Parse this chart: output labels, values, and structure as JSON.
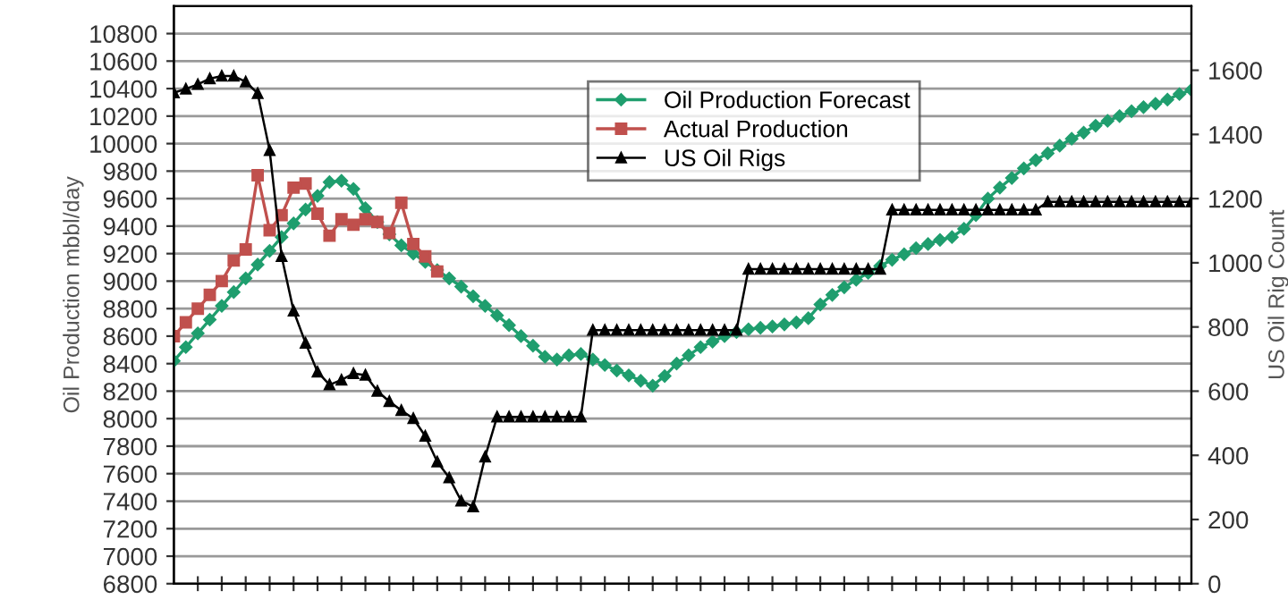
{
  "chart_data": {
    "type": "line",
    "ylabel": "Oil Production mbbl/day",
    "y2label": "US Oil Rig Count",
    "categories": [
      null,
      null,
      null,
      null,
      null,
      null,
      null,
      null,
      null,
      null,
      null,
      null,
      null,
      null,
      null,
      null,
      null,
      null,
      null,
      null,
      null,
      null,
      null,
      null,
      null,
      null,
      null,
      null,
      null,
      null,
      null,
      null,
      null,
      null,
      null,
      null,
      null,
      null,
      null,
      null,
      null,
      null,
      null,
      null,
      null,
      null,
      null,
      null,
      null,
      null,
      null,
      null,
      null,
      null,
      null,
      null,
      null,
      null,
      null,
      null,
      null,
      null,
      null,
      null,
      null,
      null,
      null,
      null,
      null,
      null,
      null,
      null,
      null,
      null,
      null,
      null,
      null,
      null,
      null,
      null,
      null,
      null,
      null,
      null,
      null,
      null
    ],
    "ylim": [
      6800,
      11000
    ],
    "yticks": [
      6800,
      7000,
      7200,
      7400,
      7600,
      7800,
      8000,
      8200,
      8400,
      8600,
      8800,
      9000,
      9200,
      9400,
      9600,
      9800,
      10000,
      10200,
      10400,
      10600,
      10800
    ],
    "y2lim": [
      0,
      1800
    ],
    "y2ticks": [
      0,
      200,
      400,
      600,
      800,
      1000,
      1200,
      1400,
      1600
    ],
    "grid": "y",
    "legend": "top",
    "line_style": "solid",
    "series": [
      {
        "name": "Oil Production Forecast",
        "color": "#1f9e6e",
        "marker": "diamond",
        "values": [
          8420,
          8520,
          8620,
          8720,
          8820,
          8920,
          9020,
          9120,
          9220,
          9320,
          9420,
          9520,
          9620,
          9720,
          9730,
          9670,
          9530,
          9430,
          9340,
          9260,
          9200,
          9140,
          9080,
          9020,
          8960,
          8890,
          8820,
          8750,
          8680,
          8600,
          8530,
          8450,
          8430,
          8460,
          8470,
          8430,
          8390,
          8350,
          8315,
          8275,
          8240,
          8310,
          8400,
          8460,
          8520,
          8560,
          8600,
          8630,
          8650,
          8660,
          8670,
          8685,
          8700,
          8730,
          8830,
          8900,
          8955,
          9010,
          9060,
          9110,
          9155,
          9195,
          9240,
          9270,
          9300,
          9320,
          9380,
          9480,
          9600,
          9680,
          9750,
          9820,
          9880,
          9930,
          9985,
          10035,
          10080,
          10130,
          10165,
          10200,
          10235,
          10265,
          10290,
          10320,
          10360,
          10390
        ]
      },
      {
        "name": "Actual Production",
        "color": "#c0504d",
        "marker": "square",
        "values": [
          8600,
          8700,
          8800,
          8900,
          9000,
          9150,
          9230,
          9770,
          9370,
          9480,
          9680,
          9710,
          9490,
          9330,
          9450,
          9410,
          9450,
          9430,
          9350,
          9570,
          9270,
          9180,
          9070,
          null,
          null,
          null,
          null,
          null,
          null,
          null,
          null,
          null,
          null,
          null,
          null,
          null,
          null,
          null,
          null,
          null,
          null,
          null,
          null,
          null,
          null,
          null,
          null,
          null,
          null,
          null,
          null,
          null,
          null,
          null,
          null,
          null,
          null,
          null,
          null,
          null,
          null,
          null,
          null,
          null,
          null,
          null,
          null,
          null,
          null,
          null,
          null,
          null,
          null,
          null,
          null,
          null,
          null,
          null,
          null,
          null,
          null,
          null,
          null,
          null,
          null,
          null
        ]
      },
      {
        "name": "US Oil Rigs",
        "color": "#000000",
        "marker": "triangle",
        "axis": "y2",
        "values": [
          1530,
          1542,
          1556,
          1574,
          1582,
          1582,
          1564,
          1528,
          1350,
          1020,
          850,
          750,
          660,
          620,
          635,
          655,
          650,
          600,
          568,
          540,
          515,
          460,
          380,
          330,
          258,
          240,
          395,
          520,
          520,
          520,
          520,
          520,
          520,
          520,
          520,
          790,
          790,
          790,
          790,
          790,
          790,
          790,
          790,
          790,
          790,
          790,
          790,
          790,
          980,
          980,
          980,
          980,
          980,
          980,
          980,
          980,
          980,
          980,
          980,
          980,
          1165,
          1165,
          1165,
          1165,
          1165,
          1165,
          1165,
          1165,
          1165,
          1165,
          1165,
          1165,
          1165,
          1190,
          1190,
          1190,
          1190,
          1190,
          1190,
          1190,
          1190,
          1190,
          1190,
          1190,
          1190,
          1190
        ]
      }
    ]
  }
}
